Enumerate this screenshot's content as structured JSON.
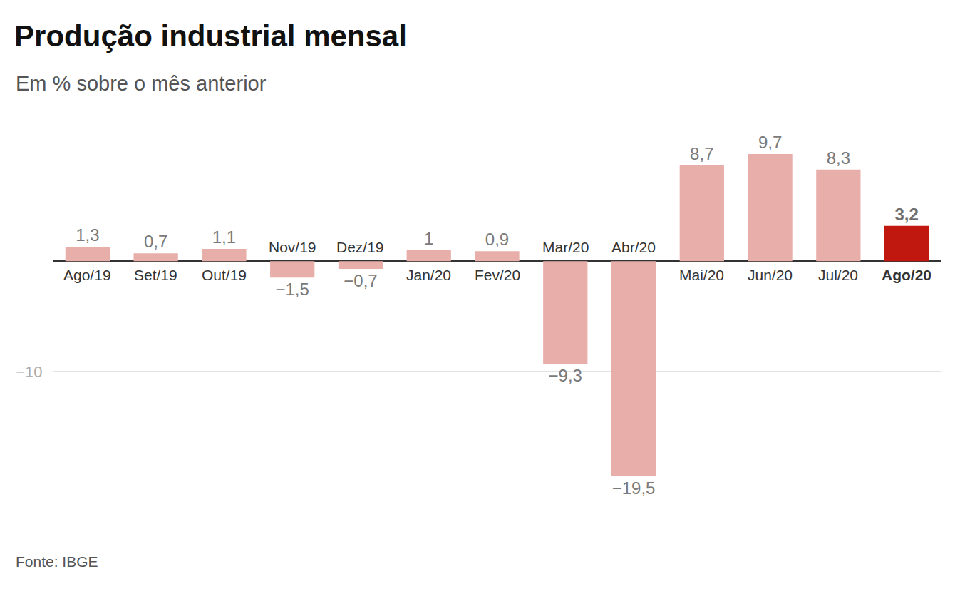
{
  "chart_data": {
    "type": "bar",
    "title": "Produção industrial mensal",
    "subtitle": "Em % sobre o mês anterior",
    "source": "Fonte: IBGE",
    "categories": [
      "Ago/19",
      "Set/19",
      "Out/19",
      "Nov/19",
      "Dez/19",
      "Jan/20",
      "Fev/20",
      "Mar/20",
      "Abr/20",
      "Mai/20",
      "Jun/20",
      "Jul/20",
      "Ago/20"
    ],
    "values": [
      1.3,
      0.7,
      1.1,
      -1.5,
      -0.7,
      1,
      0.9,
      -9.3,
      -19.5,
      8.7,
      9.7,
      8.3,
      3.2
    ],
    "value_labels": [
      "1,3",
      "0,7",
      "1,1",
      "−1,5",
      "−0,7",
      "1",
      "0,9",
      "−9,3",
      "−19,5",
      "8,7",
      "9,7",
      "8,3",
      "3,2"
    ],
    "colors": [
      "#e8aeaa",
      "#e8aeaa",
      "#e8aeaa",
      "#e8aeaa",
      "#e8aeaa",
      "#e8aeaa",
      "#e8aeaa",
      "#e8aeaa",
      "#e8aeaa",
      "#e8aeaa",
      "#e8aeaa",
      "#e8aeaa",
      "#c0170f"
    ],
    "ylim": [
      -23,
      13
    ],
    "yticks": [
      {
        "value": -10,
        "label": "−10"
      }
    ],
    "grid": true,
    "data_labels": true,
    "tick_labels": "y"
  }
}
